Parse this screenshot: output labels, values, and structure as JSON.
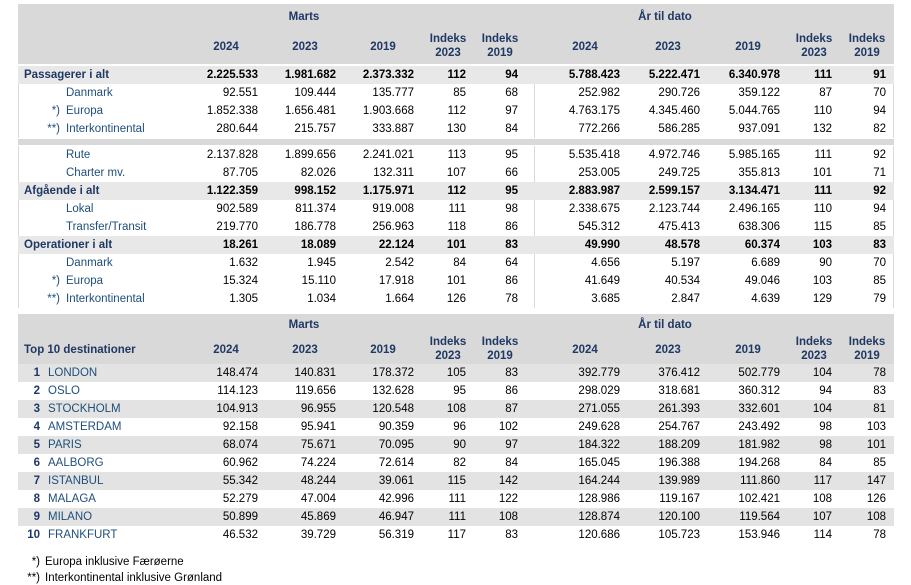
{
  "colors": {
    "header_band": "#d9d9d9",
    "total_row": "#e8e8e8",
    "alt_row": "#e3e3e3",
    "navy": "#1f3864",
    "label_blue": "#1f4e79"
  },
  "table1": {
    "marts_label": "Marts",
    "ytd_label": "År til dato",
    "columns": [
      "2024",
      "2023",
      "2019",
      "Indeks 2023",
      "Indeks 2019"
    ],
    "rows": [
      {
        "style": "total",
        "prefix": "",
        "label": "Passagerer i alt",
        "marts": [
          "2.225.533",
          "1.981.682",
          "2.373.332",
          "112",
          "94"
        ],
        "ytd": [
          "5.788.423",
          "5.222.471",
          "6.340.978",
          "111",
          "91"
        ]
      },
      {
        "style": "sub",
        "prefix": "",
        "label": "Danmark",
        "marts": [
          "92.551",
          "109.444",
          "135.777",
          "85",
          "68"
        ],
        "ytd": [
          "252.982",
          "290.726",
          "359.122",
          "87",
          "70"
        ]
      },
      {
        "style": "sub",
        "prefix": "*)",
        "label": "Europa",
        "marts": [
          "1.852.338",
          "1.656.481",
          "1.903.668",
          "112",
          "97"
        ],
        "ytd": [
          "4.763.175",
          "4.345.460",
          "5.044.765",
          "110",
          "94"
        ]
      },
      {
        "style": "sub",
        "prefix": "**)",
        "label": "Interkontinental",
        "marts": [
          "280.644",
          "215.757",
          "333.887",
          "130",
          "84"
        ],
        "ytd": [
          "772.266",
          "586.285",
          "937.091",
          "132",
          "82"
        ]
      },
      {
        "style": "separator"
      },
      {
        "style": "sub",
        "prefix": "",
        "label": "Rute",
        "marts": [
          "2.137.828",
          "1.899.656",
          "2.241.021",
          "113",
          "95"
        ],
        "ytd": [
          "5.535.418",
          "4.972.746",
          "5.985.165",
          "111",
          "92"
        ]
      },
      {
        "style": "sub",
        "prefix": "",
        "label": "Charter mv.",
        "marts": [
          "87.705",
          "82.026",
          "132.311",
          "107",
          "66"
        ],
        "ytd": [
          "253.005",
          "249.725",
          "355.813",
          "101",
          "71"
        ]
      },
      {
        "style": "total",
        "prefix": "",
        "label": "Afgående i alt",
        "marts": [
          "1.122.359",
          "998.152",
          "1.175.971",
          "112",
          "95"
        ],
        "ytd": [
          "2.883.987",
          "2.599.157",
          "3.134.471",
          "111",
          "92"
        ]
      },
      {
        "style": "sub",
        "prefix": "",
        "label": "Lokal",
        "marts": [
          "902.589",
          "811.374",
          "919.008",
          "111",
          "98"
        ],
        "ytd": [
          "2.338.675",
          "2.123.744",
          "2.496.165",
          "110",
          "94"
        ]
      },
      {
        "style": "sub",
        "prefix": "",
        "label": "Transfer/Transit",
        "marts": [
          "219.770",
          "186.778",
          "256.963",
          "118",
          "86"
        ],
        "ytd": [
          "545.312",
          "475.413",
          "638.306",
          "115",
          "85"
        ]
      },
      {
        "style": "total",
        "prefix": "",
        "label": "Operationer i alt",
        "marts": [
          "18.261",
          "18.089",
          "22.124",
          "101",
          "83"
        ],
        "ytd": [
          "49.990",
          "48.578",
          "60.374",
          "103",
          "83"
        ]
      },
      {
        "style": "sub",
        "prefix": "",
        "label": "Danmark",
        "marts": [
          "1.632",
          "1.945",
          "2.542",
          "84",
          "64"
        ],
        "ytd": [
          "4.656",
          "5.197",
          "6.689",
          "90",
          "70"
        ]
      },
      {
        "style": "sub",
        "prefix": "*)",
        "label": "Europa",
        "marts": [
          "15.324",
          "15.110",
          "17.918",
          "101",
          "86"
        ],
        "ytd": [
          "41.649",
          "40.534",
          "49.046",
          "103",
          "85"
        ]
      },
      {
        "style": "sub",
        "prefix": "**)",
        "label": "Interkontinental",
        "marts": [
          "1.305",
          "1.034",
          "1.664",
          "126",
          "78"
        ],
        "ytd": [
          "3.685",
          "2.847",
          "4.639",
          "129",
          "79"
        ]
      }
    ]
  },
  "table2": {
    "marts_label": "Marts",
    "ytd_label": "År til dato",
    "title": "Top 10 destinationer",
    "columns": [
      "2024",
      "2023",
      "2019",
      "Indeks 2023",
      "Indeks 2019"
    ],
    "rows": [
      {
        "rank": "1",
        "city": "LONDON",
        "marts": [
          "148.474",
          "140.831",
          "178.372",
          "105",
          "83"
        ],
        "ytd": [
          "392.779",
          "376.412",
          "502.779",
          "104",
          "78"
        ]
      },
      {
        "rank": "2",
        "city": "OSLO",
        "marts": [
          "114.123",
          "119.656",
          "132.628",
          "95",
          "86"
        ],
        "ytd": [
          "298.029",
          "318.681",
          "360.312",
          "94",
          "83"
        ]
      },
      {
        "rank": "3",
        "city": "STOCKHOLM",
        "marts": [
          "104.913",
          "96.955",
          "120.548",
          "108",
          "87"
        ],
        "ytd": [
          "271.055",
          "261.393",
          "332.601",
          "104",
          "81"
        ]
      },
      {
        "rank": "4",
        "city": "AMSTERDAM",
        "marts": [
          "92.158",
          "95.941",
          "90.359",
          "96",
          "102"
        ],
        "ytd": [
          "249.628",
          "254.767",
          "243.492",
          "98",
          "103"
        ]
      },
      {
        "rank": "5",
        "city": "PARIS",
        "marts": [
          "68.074",
          "75.671",
          "70.095",
          "90",
          "97"
        ],
        "ytd": [
          "184.322",
          "188.209",
          "181.982",
          "98",
          "101"
        ]
      },
      {
        "rank": "6",
        "city": "AALBORG",
        "marts": [
          "60.962",
          "74.224",
          "72.614",
          "82",
          "84"
        ],
        "ytd": [
          "165.045",
          "196.388",
          "194.268",
          "84",
          "85"
        ]
      },
      {
        "rank": "7",
        "city": "ISTANBUL",
        "marts": [
          "55.342",
          "48.244",
          "39.061",
          "115",
          "142"
        ],
        "ytd": [
          "164.244",
          "139.989",
          "111.860",
          "117",
          "147"
        ]
      },
      {
        "rank": "8",
        "city": "MALAGA",
        "marts": [
          "52.279",
          "47.004",
          "42.996",
          "111",
          "122"
        ],
        "ytd": [
          "128.986",
          "119.167",
          "102.421",
          "108",
          "126"
        ]
      },
      {
        "rank": "9",
        "city": "MILANO",
        "marts": [
          "50.899",
          "45.869",
          "46.947",
          "111",
          "108"
        ],
        "ytd": [
          "128.874",
          "120.100",
          "119.564",
          "107",
          "108"
        ]
      },
      {
        "rank": "10",
        "city": "FRANKFURT",
        "marts": [
          "46.532",
          "39.729",
          "56.319",
          "117",
          "83"
        ],
        "ytd": [
          "120.686",
          "105.723",
          "153.946",
          "114",
          "78"
        ]
      }
    ]
  },
  "footnotes": [
    {
      "prefix": "*)",
      "text": "Europa inklusive Færøerne"
    },
    {
      "prefix": "**)",
      "text": "Interkontinental inklusive Grønland"
    }
  ]
}
